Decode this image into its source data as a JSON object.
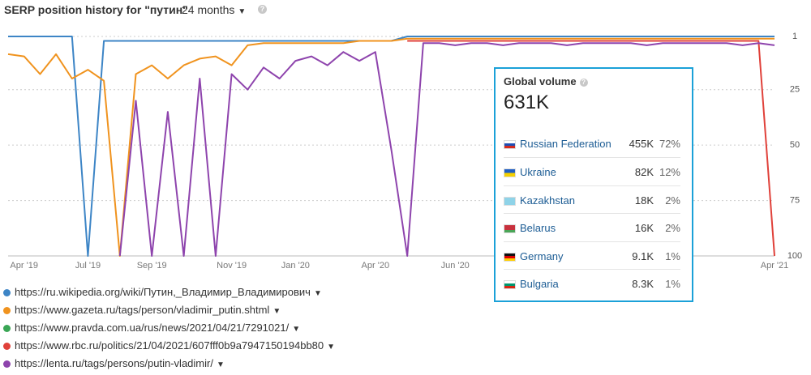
{
  "chart_data": {
    "type": "line",
    "title": "SERP position history for \"путин\"",
    "categories": [
      null,
      "Apr '19",
      null,
      null,
      null,
      "Jul '19",
      null,
      null,
      null,
      "Sep '19",
      null,
      null,
      null,
      null,
      "Nov '19",
      null,
      null,
      null,
      "Jan '20",
      null,
      null,
      null,
      null,
      "Apr '20",
      null,
      null,
      null,
      null,
      "Jun '20",
      null,
      null,
      null,
      null,
      null,
      null,
      null,
      null,
      null,
      null,
      null,
      null,
      null,
      null,
      null,
      null,
      null,
      null,
      null,
      "Apr '21"
    ],
    "ylim": [
      1,
      100
    ],
    "yticks": [
      1,
      25,
      50,
      75,
      100
    ],
    "inverted": true,
    "grid": true,
    "series": [
      {
        "name": "https://ru.wikipedia.org/wiki/Путин,_Владимир_Владимирович",
        "color": "#3d85c6",
        "values": [
          1,
          1,
          1,
          1,
          1,
          100,
          3,
          3,
          3,
          3,
          3,
          3,
          3,
          3,
          3,
          3,
          3,
          3,
          3,
          3,
          3,
          3,
          3,
          3,
          3,
          1,
          1,
          1,
          1,
          1,
          1,
          1,
          1,
          1,
          1,
          1,
          1,
          1,
          1,
          1,
          1,
          1,
          1,
          1,
          1,
          1,
          1,
          1,
          1
        ]
      },
      {
        "name": "https://www.gazeta.ru/tags/person/vladimir_putin.shtml",
        "color": "#f0931e",
        "values": [
          9,
          10,
          18,
          9,
          20,
          16,
          21,
          100,
          18,
          14,
          20,
          14,
          11,
          10,
          14,
          5,
          4,
          4,
          4,
          4,
          4,
          4,
          3,
          3,
          3,
          2,
          2,
          2,
          2,
          2,
          2,
          2,
          2,
          2,
          2,
          2,
          2,
          2,
          2,
          2,
          2,
          2,
          2,
          2,
          2,
          2,
          2,
          2,
          2
        ]
      },
      {
        "name": "https://www.pravda.com.ua/rus/news/2021/04/21/7291021/",
        "color": "#3aa655",
        "values": [
          null,
          null,
          null,
          null,
          null,
          null,
          null,
          null,
          null,
          null,
          null,
          null,
          null,
          null,
          null,
          null,
          null,
          null,
          null,
          null,
          null,
          null,
          null,
          null,
          null,
          null,
          null,
          null,
          null,
          null,
          null,
          null,
          null,
          null,
          null,
          null,
          null,
          null,
          null,
          null,
          null,
          null,
          null,
          null,
          null,
          null,
          null,
          null,
          null
        ]
      },
      {
        "name": "https://www.rbc.ru/politics/21/04/2021/607fff0b9a7947150194bb80",
        "color": "#e0413a",
        "values": [
          null,
          null,
          null,
          null,
          null,
          null,
          null,
          null,
          null,
          null,
          null,
          null,
          null,
          null,
          null,
          null,
          null,
          null,
          null,
          null,
          null,
          null,
          null,
          null,
          null,
          3,
          3,
          3,
          3,
          3,
          3,
          3,
          3,
          3,
          3,
          3,
          3,
          3,
          3,
          3,
          3,
          3,
          3,
          3,
          3,
          3,
          3,
          3,
          100
        ]
      },
      {
        "name": "https://lenta.ru/tags/persons/putin-vladimir/",
        "color": "#8e44ad",
        "values": [
          null,
          null,
          null,
          null,
          null,
          null,
          null,
          100,
          30,
          100,
          35,
          100,
          20,
          100,
          18,
          25,
          15,
          20,
          12,
          10,
          14,
          8,
          12,
          8,
          52,
          100,
          4,
          4,
          5,
          4,
          4,
          5,
          4,
          4,
          4,
          5,
          4,
          4,
          4,
          4,
          5,
          4,
          4,
          4,
          4,
          4,
          5,
          4,
          5
        ]
      }
    ]
  },
  "header": {
    "period": "24 months"
  },
  "popup": {
    "title": "Global volume",
    "total": "631K",
    "rows": [
      {
        "country": "Russian Federation",
        "volume": "455K",
        "share": "72%"
      },
      {
        "country": "Ukraine",
        "volume": "82K",
        "share": "12%"
      },
      {
        "country": "Kazakhstan",
        "volume": "18K",
        "share": "2%"
      },
      {
        "country": "Belarus",
        "volume": "16K",
        "share": "2%"
      },
      {
        "country": "Germany",
        "volume": "9.1K",
        "share": "1%"
      },
      {
        "country": "Bulgaria",
        "volume": "8.3K",
        "share": "1%"
      }
    ]
  }
}
